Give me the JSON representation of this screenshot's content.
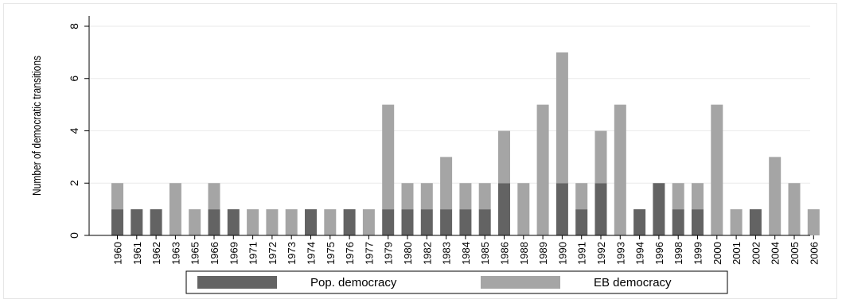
{
  "chart_data": {
    "type": "bar",
    "stacked": true,
    "ylabel": "Number of democratic transitions",
    "xlabel": "",
    "title": "",
    "ylim": [
      0,
      8
    ],
    "yticks": [
      0,
      2,
      4,
      6,
      8
    ],
    "grid": true,
    "legend_position": "bottom",
    "categories": [
      "1960",
      "1961",
      "1962",
      "1963",
      "1965",
      "1966",
      "1969",
      "1971",
      "1972",
      "1973",
      "1974",
      "1975",
      "1976",
      "1977",
      "1979",
      "1980",
      "1982",
      "1983",
      "1984",
      "1985",
      "1986",
      "1988",
      "1989",
      "1990",
      "1991",
      "1992",
      "1993",
      "1994",
      "1996",
      "1998",
      "1999",
      "2000",
      "2001",
      "2002",
      "2004",
      "2005",
      "2006"
    ],
    "series": [
      {
        "name": "Pop. democracy",
        "color": "#636363",
        "values": [
          1,
          1,
          1,
          0,
          0,
          1,
          1,
          0,
          0,
          0,
          1,
          0,
          1,
          0,
          1,
          1,
          1,
          1,
          1,
          1,
          2,
          0,
          0,
          2,
          1,
          2,
          0,
          1,
          2,
          1,
          1,
          0,
          0,
          1,
          0,
          0,
          0
        ]
      },
      {
        "name": "EB democracy",
        "color": "#a5a5a5",
        "values": [
          1,
          0,
          0,
          2,
          1,
          1,
          0,
          1,
          1,
          1,
          0,
          1,
          0,
          1,
          4,
          1,
          1,
          2,
          1,
          1,
          2,
          2,
          5,
          5,
          1,
          2,
          5,
          0,
          0,
          1,
          1,
          5,
          1,
          0,
          3,
          2,
          1
        ]
      }
    ]
  }
}
